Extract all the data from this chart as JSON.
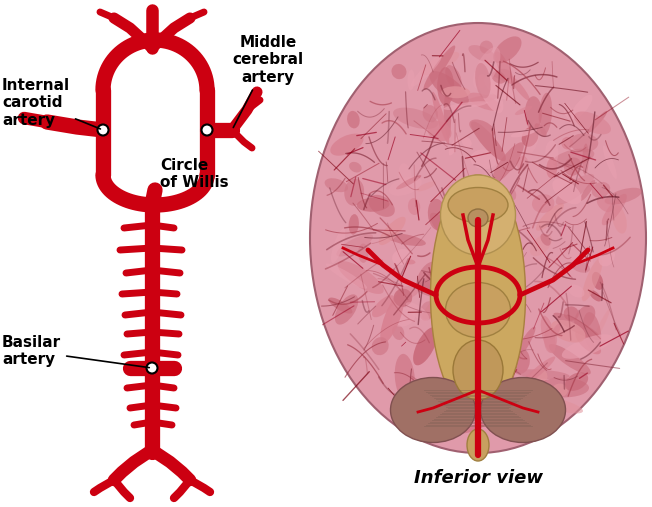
{
  "background_color": "#ffffff",
  "artery_color": "#cc0011",
  "brain_base": "#e8a0b0",
  "brain_mid": "#d4889a",
  "brain_dark": "#b06070",
  "brain_light": "#f0c0cc",
  "brain_deep": "#c07888",
  "stem_color": "#d4b870",
  "stem_dark": "#b89050",
  "cereb_color": "#b8806a",
  "inferior_view_text": "Inferior view",
  "labels": {
    "internal_carotid": "Internal\ncarotid\nartery",
    "middle_cerebral": "Middle\ncerebral\nartery",
    "circle_willis": "Circle\nof Willis",
    "basilar": "Basilar\nartery"
  },
  "label_fontsize": 11,
  "inferior_fontsize": 13
}
